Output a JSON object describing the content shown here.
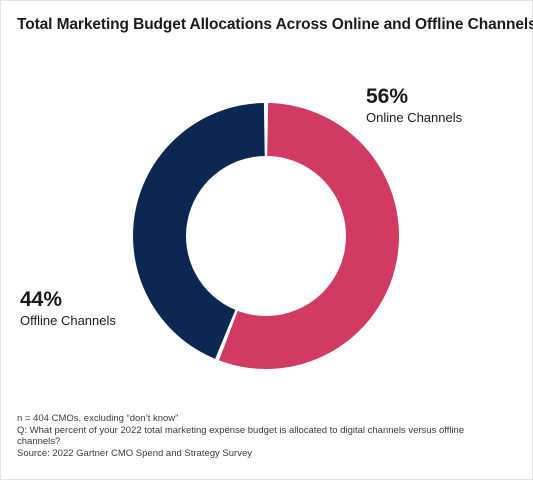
{
  "title": "Total Marketing Budget Allocations Across Online and Offline Channels",
  "colors": {
    "online": "#d03a63",
    "offline": "#0c2852",
    "background": "#ffffff"
  },
  "chart_data": {
    "type": "pie",
    "variant": "donut",
    "title": "Total Marketing Budget Allocations Across Online and Offline Channels",
    "slices": [
      {
        "label": "Online Channels",
        "value": 56,
        "display": "56%",
        "color": "#d03a63"
      },
      {
        "label": "Offline Channels",
        "value": 44,
        "display": "44%",
        "color": "#0c2852"
      }
    ],
    "start_angle_deg": 0,
    "direction": "clockwise",
    "legend": "none (direct labels)"
  },
  "footnotes": {
    "sample": "n = 404 CMOs, excluding “don’t know”",
    "question": "Q: What percent of your 2022 total marketing expense budget is allocated to digital channels versus offline channels?",
    "source": "Source: 2022 Gartner CMO Spend and Strategy Survey"
  }
}
